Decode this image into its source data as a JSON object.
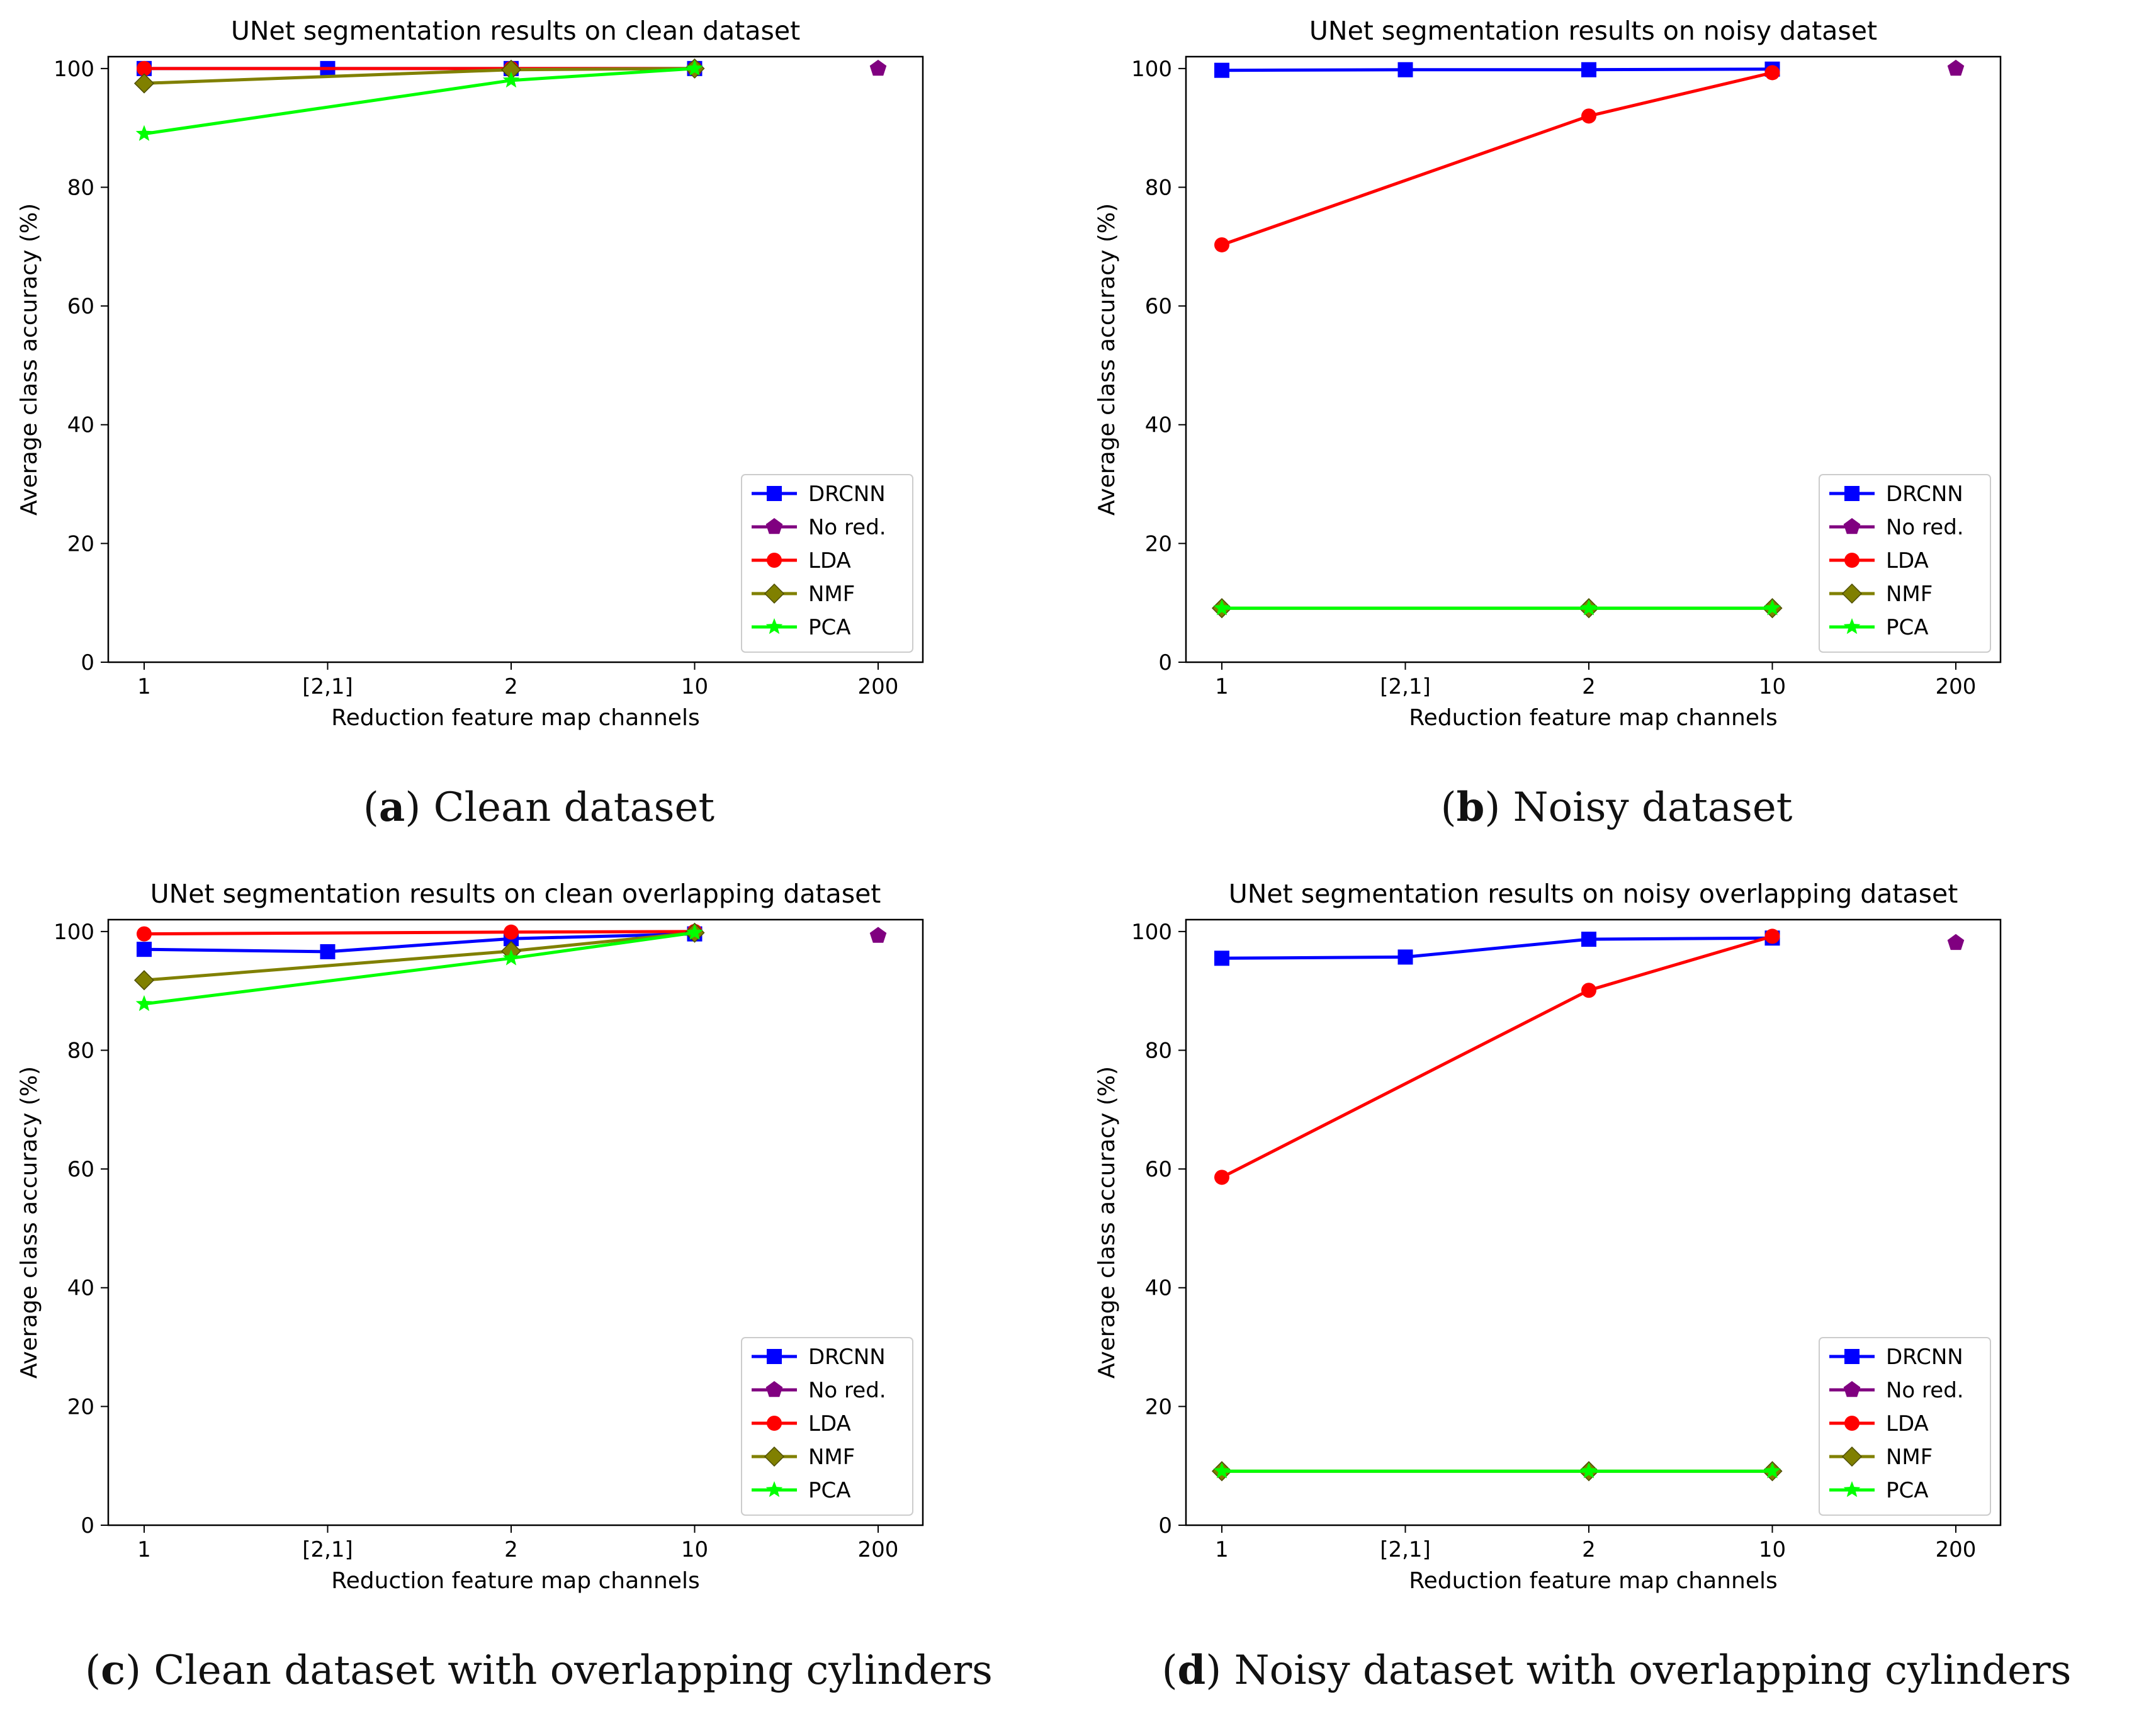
{
  "chart_data": [
    {
      "type": "line",
      "title": "UNet segmentation results on clean dataset",
      "xlabel": "Reduction feature map channels",
      "ylabel": "Average class accuracy (%)",
      "caption_letter": "a",
      "caption_text": "Clean dataset",
      "categories": [
        "1",
        "[2,1]",
        "2",
        "10",
        "200"
      ],
      "yticks": [
        "0",
        "20",
        "40",
        "60",
        "80",
        "100"
      ],
      "ylim": [
        0,
        102
      ],
      "legend_position": "lower-right",
      "series": [
        {
          "name": "DRCNN",
          "color": "#0000ff",
          "marker": "square",
          "values": [
            100.0,
            100.0,
            100.0,
            100.0,
            null
          ]
        },
        {
          "name": "No red.",
          "color": "#800080",
          "marker": "pentagon",
          "values": [
            null,
            null,
            null,
            null,
            100.0
          ]
        },
        {
          "name": "LDA",
          "color": "#ff0000",
          "marker": "circle",
          "values": [
            100.0,
            null,
            100.0,
            100.0,
            null
          ]
        },
        {
          "name": "NMF",
          "color": "#808000",
          "marker": "diamond",
          "values": [
            97.5,
            null,
            99.8,
            100.0,
            null
          ]
        },
        {
          "name": "PCA",
          "color": "#00ff00",
          "marker": "star",
          "values": [
            89.0,
            null,
            98.0,
            100.0,
            null
          ]
        }
      ]
    },
    {
      "type": "line",
      "title": "UNet segmentation results on noisy dataset",
      "xlabel": "Reduction feature map channels",
      "ylabel": "Average class accuracy (%)",
      "caption_letter": "b",
      "caption_text": "Noisy dataset",
      "categories": [
        "1",
        "[2,1]",
        "2",
        "10",
        "200"
      ],
      "yticks": [
        "0",
        "20",
        "40",
        "60",
        "80",
        "100"
      ],
      "ylim": [
        0,
        102
      ],
      "legend_position": "lower-right",
      "series": [
        {
          "name": "DRCNN",
          "color": "#0000ff",
          "marker": "square",
          "values": [
            99.7,
            99.8,
            99.8,
            99.9,
            null
          ]
        },
        {
          "name": "No red.",
          "color": "#800080",
          "marker": "pentagon",
          "values": [
            null,
            null,
            null,
            null,
            100.0
          ]
        },
        {
          "name": "LDA",
          "color": "#ff0000",
          "marker": "circle",
          "values": [
            70.3,
            null,
            92.0,
            99.3,
            null
          ]
        },
        {
          "name": "NMF",
          "color": "#808000",
          "marker": "diamond",
          "values": [
            9.1,
            null,
            9.1,
            9.1,
            null
          ]
        },
        {
          "name": "PCA",
          "color": "#00ff00",
          "marker": "star",
          "values": [
            9.1,
            null,
            9.1,
            9.1,
            null
          ]
        }
      ]
    },
    {
      "type": "line",
      "title": "UNet segmentation results on clean overlapping dataset",
      "xlabel": "Reduction feature map channels",
      "ylabel": "Average class accuracy (%)",
      "caption_letter": "c",
      "caption_text": "Clean dataset with overlapping cylinders",
      "categories": [
        "1",
        "[2,1]",
        "2",
        "10",
        "200"
      ],
      "yticks": [
        "0",
        "20",
        "40",
        "60",
        "80",
        "100"
      ],
      "ylim": [
        0,
        102
      ],
      "legend_position": "lower-right",
      "series": [
        {
          "name": "DRCNN",
          "color": "#0000ff",
          "marker": "square",
          "values": [
            97.0,
            96.6,
            98.8,
            99.6,
            null
          ]
        },
        {
          "name": "No red.",
          "color": "#800080",
          "marker": "pentagon",
          "values": [
            null,
            null,
            null,
            null,
            99.3
          ]
        },
        {
          "name": "LDA",
          "color": "#ff0000",
          "marker": "circle",
          "values": [
            99.6,
            null,
            99.9,
            100.0,
            null
          ]
        },
        {
          "name": "NMF",
          "color": "#808000",
          "marker": "diamond",
          "values": [
            91.8,
            null,
            96.7,
            99.8,
            null
          ]
        },
        {
          "name": "PCA",
          "color": "#00ff00",
          "marker": "star",
          "values": [
            87.8,
            null,
            95.5,
            99.8,
            null
          ]
        }
      ]
    },
    {
      "type": "line",
      "title": "UNet segmentation results on noisy overlapping dataset",
      "xlabel": "Reduction feature map channels",
      "ylabel": "Average class accuracy (%)",
      "caption_letter": "d",
      "caption_text": "Noisy dataset with overlapping cylinders",
      "categories": [
        "1",
        "[2,1]",
        "2",
        "10",
        "200"
      ],
      "yticks": [
        "0",
        "20",
        "40",
        "60",
        "80",
        "100"
      ],
      "ylim": [
        0,
        102
      ],
      "legend_position": "lower-right",
      "series": [
        {
          "name": "DRCNN",
          "color": "#0000ff",
          "marker": "square",
          "values": [
            95.5,
            95.7,
            98.7,
            98.9,
            null
          ]
        },
        {
          "name": "No red.",
          "color": "#800080",
          "marker": "pentagon",
          "values": [
            null,
            null,
            null,
            null,
            98.1
          ]
        },
        {
          "name": "LDA",
          "color": "#ff0000",
          "marker": "circle",
          "values": [
            58.6,
            null,
            90.1,
            99.2,
            null
          ]
        },
        {
          "name": "NMF",
          "color": "#808000",
          "marker": "diamond",
          "values": [
            9.1,
            null,
            9.1,
            9.1,
            null
          ]
        },
        {
          "name": "PCA",
          "color": "#00ff00",
          "marker": "star",
          "values": [
            9.1,
            null,
            9.1,
            9.1,
            null
          ]
        }
      ]
    }
  ]
}
